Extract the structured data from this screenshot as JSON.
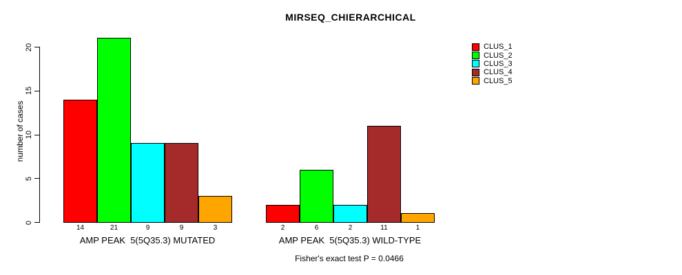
{
  "chart_data": {
    "type": "bar",
    "grouped": true,
    "title": "MIRSEQ_CHIERARCHICAL",
    "xlabel": "",
    "ylabel": "number of cases",
    "annotation": "Fisher's exact test P = 0.0466",
    "categories": [
      "AMP PEAK  5(5Q35.3) MUTATED",
      "AMP PEAK  5(5Q35.3) WILD-TYPE"
    ],
    "series": [
      {
        "name": "CLUS_1",
        "color": "#FF0000",
        "values": [
          14,
          2
        ]
      },
      {
        "name": "CLUS_2",
        "color": "#00FF00",
        "values": [
          21,
          6
        ]
      },
      {
        "name": "CLUS_3",
        "color": "#00FFFF",
        "values": [
          9,
          2
        ]
      },
      {
        "name": "CLUS_4",
        "color": "#A52A2A",
        "values": [
          9,
          11
        ]
      },
      {
        "name": "CLUS_5",
        "color": "#FFA500",
        "values": [
          3,
          1
        ]
      }
    ],
    "y_ticks": [
      0,
      5,
      10,
      15,
      20
    ],
    "ylim": [
      0,
      21
    ],
    "bar_value_labels": [
      [
        "14",
        "21",
        "9",
        "9",
        "3"
      ],
      [
        "2",
        "6",
        "2",
        "11",
        "1"
      ]
    ],
    "grid": false,
    "legend_position": "right",
    "legend_entries": [
      "CLUS_1",
      "CLUS_2",
      "CLUS_3",
      "CLUS_4",
      "CLUS_5"
    ]
  }
}
